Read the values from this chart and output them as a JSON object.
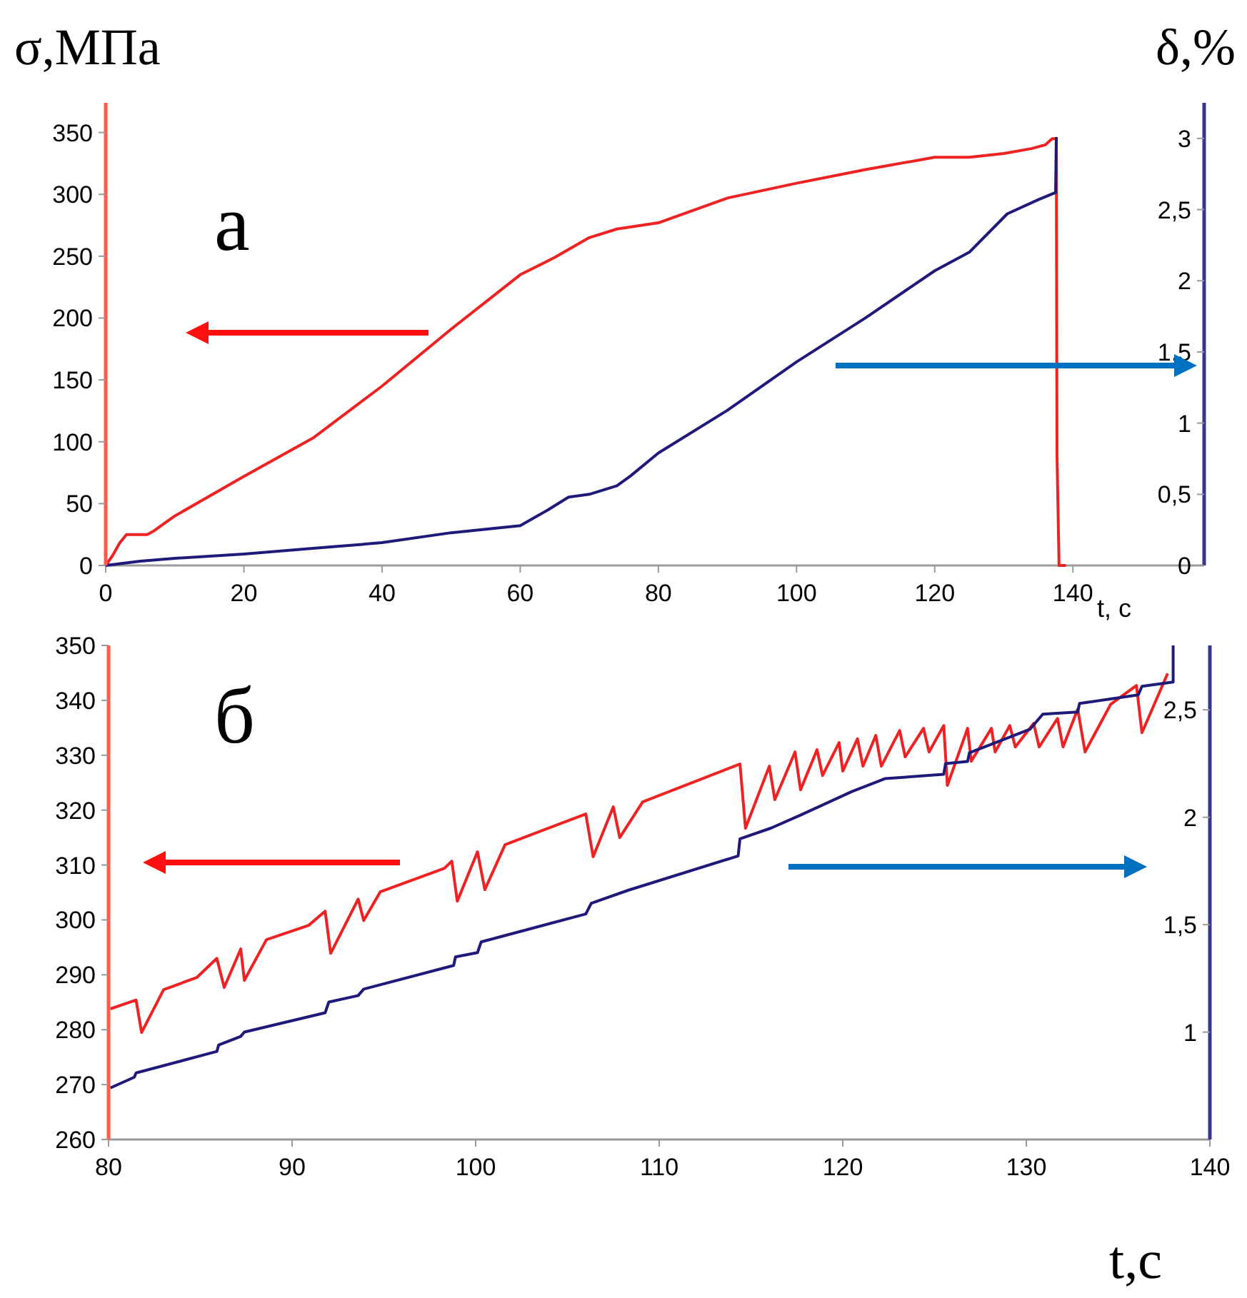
{
  "chart_data": [
    {
      "type": "line",
      "ylabel": "σ,МПа",
      "y2label": "δ,%",
      "xlabel": "t, c",
      "annotations": [
        "а"
      ],
      "xlim": [
        0,
        159
      ],
      "xticks": [
        0,
        20,
        40,
        60,
        80,
        100,
        120,
        140
      ],
      "ylim": [
        0,
        374
      ],
      "yticks": [
        0,
        50,
        100,
        150,
        200,
        250,
        300,
        350
      ],
      "y2lim": [
        0,
        3.25
      ],
      "y2ticks": [
        0,
        {
          "value": 0.5,
          "label": "0,5"
        },
        1,
        {
          "value": 1.5,
          "label": "1,5"
        },
        2,
        {
          "value": 2.5,
          "label": "2,5"
        },
        3
      ],
      "grid": false,
      "marker": "none",
      "line_style": "solid",
      "series": [
        {
          "color": "#ee2222",
          "x": [
            0,
            1,
            2,
            3,
            6,
            7,
            10,
            20,
            30,
            40,
            50,
            60,
            65,
            70,
            74,
            80,
            90,
            100,
            110,
            120,
            125,
            130,
            134,
            136,
            137,
            137.6,
            137.7,
            138,
            139
          ],
          "values": [
            0,
            8,
            18,
            25,
            25,
            28,
            40,
            72,
            103,
            145,
            191,
            235,
            249,
            265,
            272,
            277,
            297,
            309,
            320,
            330,
            330,
            333,
            337,
            340,
            345,
            345,
            90,
            0,
            0
          ]
        },
        {
          "color": "#1f1a7a",
          "axis": "y2",
          "x": [
            0,
            5,
            10,
            20,
            30,
            40,
            50,
            60,
            64,
            67,
            70,
            74,
            76,
            80,
            90,
            100,
            110,
            120,
            125,
            130.5,
            135,
            137.5,
            137.6
          ],
          "values": [
            0,
            0.03,
            0.05,
            0.08,
            0.12,
            0.16,
            0.23,
            0.28,
            0.39,
            0.48,
            0.5,
            0.56,
            0.63,
            0.79,
            1.09,
            1.43,
            1.74,
            2.07,
            2.2,
            2.47,
            2.57,
            2.62,
            3.01
          ]
        }
      ]
    },
    {
      "type": "line",
      "xlabel": "t,c",
      "annotations": [
        "б"
      ],
      "xlim": [
        80,
        140
      ],
      "xticks": [
        80,
        90,
        100,
        110,
        120,
        130,
        140
      ],
      "ylim": [
        260,
        350
      ],
      "yticks": [
        260,
        270,
        280,
        290,
        300,
        310,
        320,
        330,
        340,
        350
      ],
      "y2lim": [
        0.5,
        2.8
      ],
      "y2ticks": [
        1,
        {
          "value": 1.5,
          "label": "1,5"
        },
        2,
        {
          "value": 2.5,
          "label": "2,5"
        }
      ],
      "grid": false,
      "marker": "none",
      "line_style": "solid",
      "series": [
        {
          "color": "#ee2222",
          "x": [
            80.1,
            81.5,
            81.8,
            83.0,
            84.8,
            85.9,
            86.3,
            87.2,
            87.4,
            88.6,
            90.9,
            91.8,
            92.1,
            93.6,
            93.9,
            94.8,
            98.3,
            98.7,
            99.0,
            100.1,
            100.5,
            101.6,
            106.0,
            106.4,
            107.5,
            107.85,
            109.1,
            114.4,
            114.7,
            116.0,
            116.3,
            117.4,
            117.7,
            118.6,
            118.9,
            119.8,
            120.0,
            120.8,
            121.1,
            121.8,
            122.1,
            123.1,
            123.4,
            124.4,
            124.7,
            125.5,
            125.7,
            126.8,
            127.0,
            128.1,
            128.3,
            129.1,
            129.4,
            130.4,
            130.7,
            131.7,
            132.0,
            132.8,
            133.2,
            134.6,
            136.0,
            136.3,
            137.7
          ],
          "values": [
            283.8,
            285.4,
            279.5,
            287.3,
            289.5,
            293.0,
            287.7,
            294.7,
            289.0,
            296.4,
            299.0,
            301.6,
            293.9,
            303.8,
            299.9,
            305.1,
            309.4,
            310.7,
            303.4,
            312.4,
            305.5,
            313.7,
            319.3,
            311.5,
            320.6,
            315.0,
            321.5,
            328.4,
            316.7,
            328.0,
            321.9,
            330.6,
            323.7,
            331.0,
            326.3,
            332.3,
            327.1,
            333.0,
            328.0,
            333.6,
            328.0,
            334.5,
            329.7,
            334.9,
            330.6,
            335.4,
            324.5,
            334.9,
            328.9,
            334.9,
            330.6,
            335.4,
            331.5,
            335.8,
            331.5,
            336.7,
            331.5,
            338.4,
            330.6,
            339.3,
            342.7,
            334.1,
            344.9
          ]
        },
        {
          "color": "#1f1a7a",
          "axis": "y2",
          "x": [
            80.1,
            81.4,
            81.5,
            85.9,
            86.0,
            87.2,
            87.4,
            91.8,
            92.0,
            93.6,
            93.9,
            98.8,
            98.9,
            100.1,
            100.3,
            106.0,
            106.3,
            108.3,
            114.3,
            114.4,
            116.1,
            117.7,
            120.5,
            122.3,
            125.5,
            125.6,
            126.8,
            126.9,
            130.2,
            130.9,
            132.8,
            132.9,
            136.1,
            136.3,
            138.0,
            138.0
          ],
          "values": [
            0.74,
            0.79,
            0.81,
            0.91,
            0.94,
            0.98,
            1.0,
            1.09,
            1.14,
            1.17,
            1.2,
            1.31,
            1.35,
            1.37,
            1.42,
            1.55,
            1.6,
            1.66,
            1.82,
            1.9,
            1.95,
            2.01,
            2.12,
            2.18,
            2.2,
            2.25,
            2.26,
            2.3,
            2.41,
            2.48,
            2.49,
            2.53,
            2.57,
            2.61,
            2.63,
            2.8
          ]
        }
      ]
    }
  ]
}
